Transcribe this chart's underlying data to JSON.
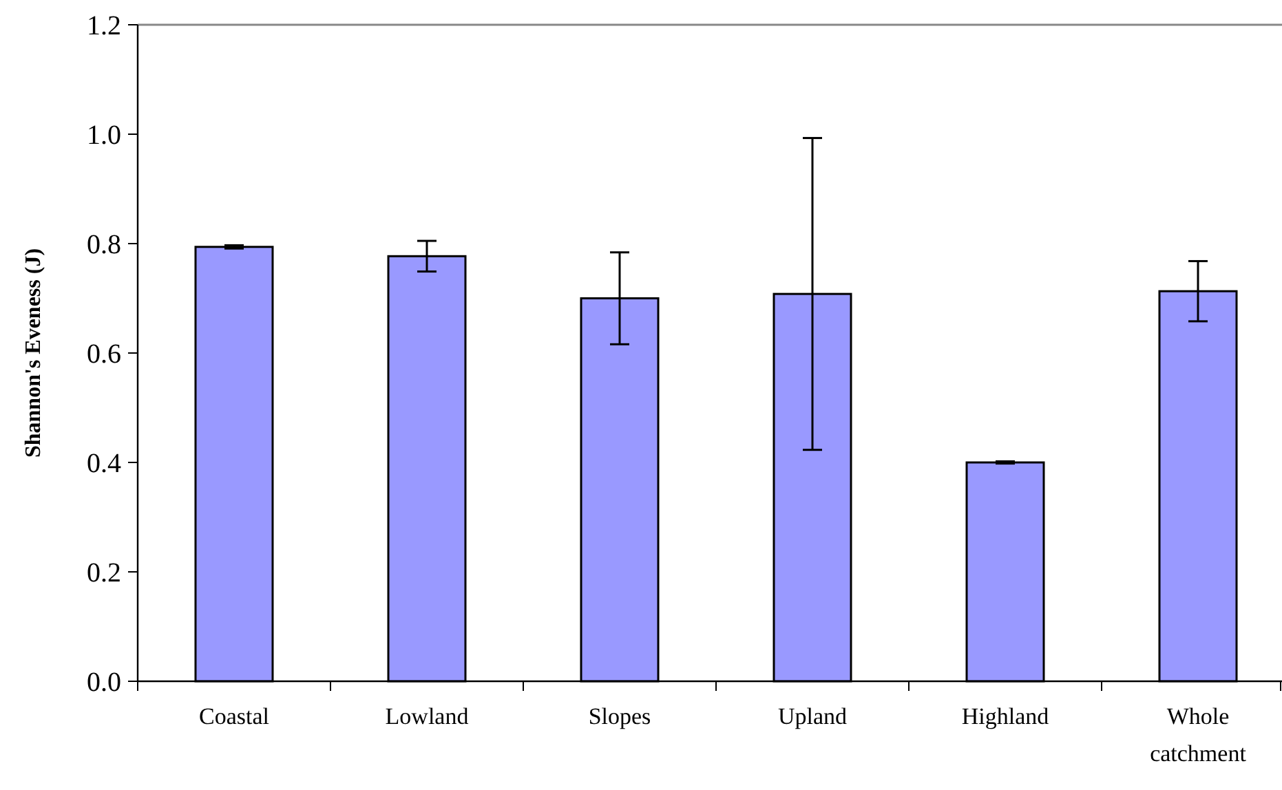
{
  "chart_data": {
    "type": "bar",
    "ylabel": "Shannon's Eveness (J)",
    "categories": [
      "Coastal",
      "Lowland",
      "Slopes",
      "Upland",
      "Highland",
      "Whole catchment"
    ],
    "values": [
      0.794,
      0.777,
      0.7,
      0.708,
      0.4,
      0.713
    ],
    "errors": [
      0.003,
      0.028,
      0.084,
      0.285,
      0.002,
      0.055
    ],
    "color": "#9999ff",
    "ylim": [
      0,
      1.2
    ],
    "yticks": [
      {
        "value": 0,
        "label": "0.0"
      },
      {
        "value": 0.2,
        "label": "0.2"
      },
      {
        "value": 0.4,
        "label": "0.4"
      },
      {
        "value": 0.6,
        "label": "0.6"
      },
      {
        "value": 0.8,
        "label": "0.8"
      },
      {
        "value": 1.0,
        "label": "1.0"
      },
      {
        "value": 1.2,
        "label": "1.2"
      }
    ],
    "grid": false
  }
}
